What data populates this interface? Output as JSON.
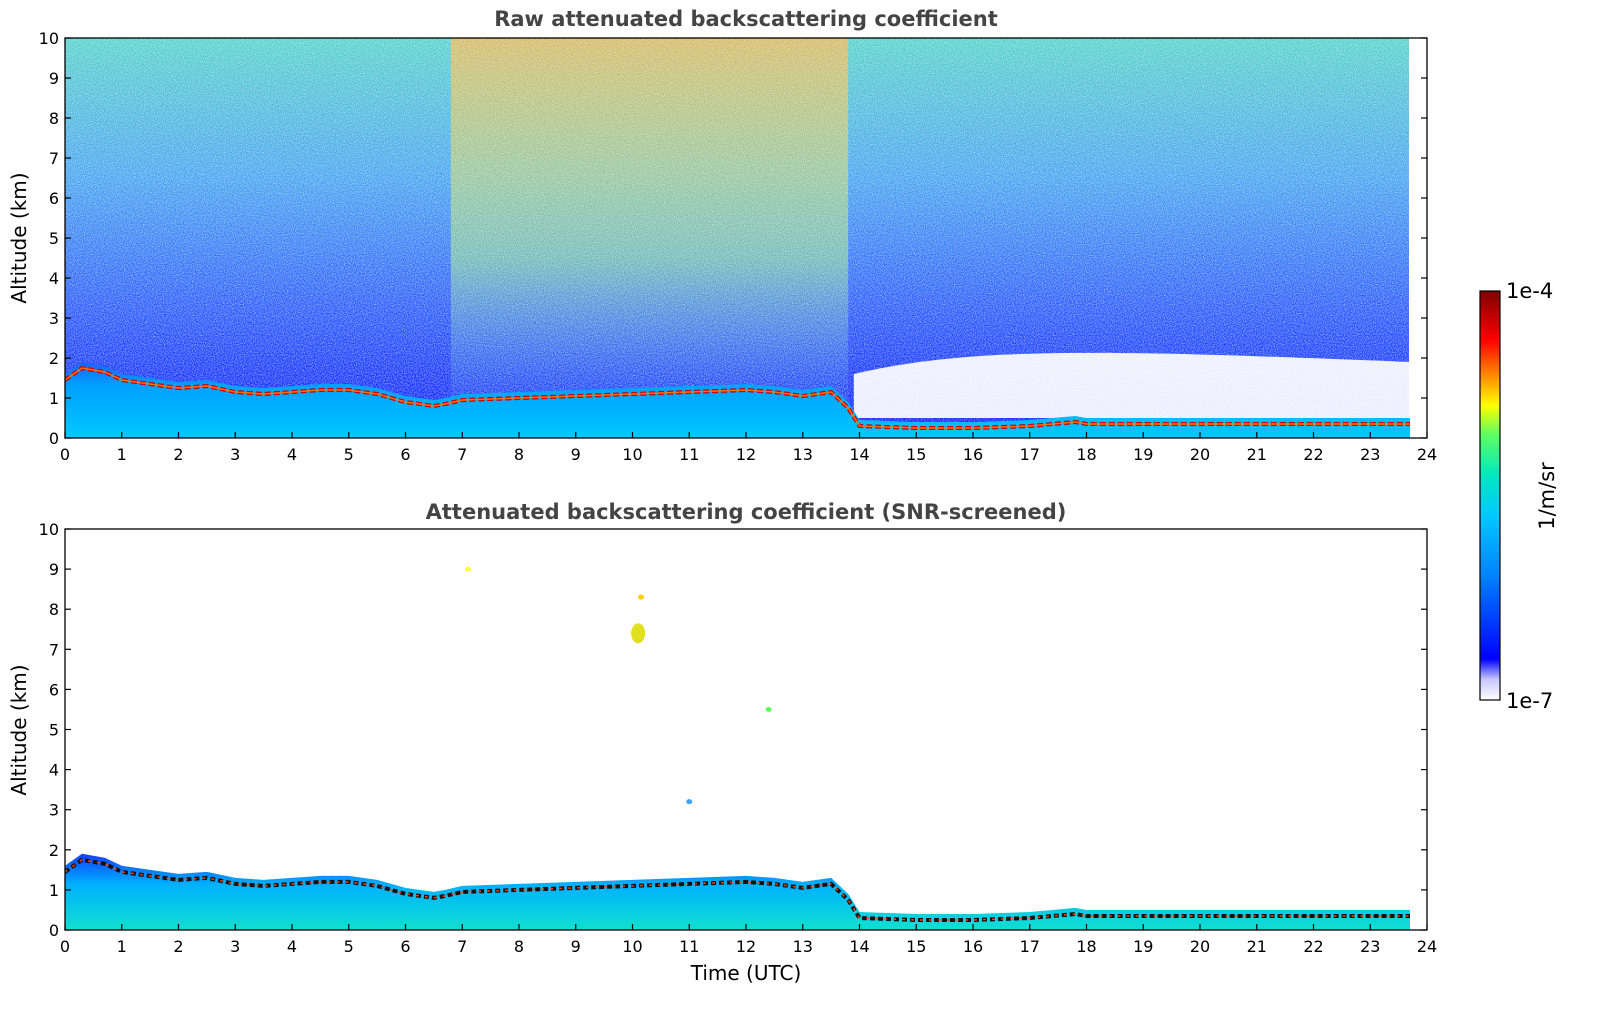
{
  "chart_data": [
    {
      "type": "heatmap",
      "title": "Raw attenuated backscattering coefficient",
      "xlabel": "",
      "ylabel": "Altitude (km)",
      "xlim": [
        0,
        24
      ],
      "ylim": [
        0,
        10
      ],
      "x_ticks": [
        "0",
        "1",
        "2",
        "3",
        "4",
        "5",
        "6",
        "7",
        "8",
        "9",
        "10",
        "11",
        "12",
        "13",
        "14",
        "15",
        "16",
        "17",
        "18",
        "19",
        "20",
        "21",
        "22",
        "23",
        "24"
      ],
      "y_ticks": [
        "0",
        "1",
        "2",
        "3",
        "4",
        "5",
        "6",
        "7",
        "8",
        "9",
        "10"
      ],
      "data_extent_hours": [
        0,
        23.7
      ],
      "layer_top_km": {
        "time": [
          0,
          0.3,
          0.7,
          1.0,
          1.5,
          2.0,
          2.5,
          3.0,
          3.5,
          4.0,
          4.5,
          5.0,
          5.5,
          6.0,
          6.5,
          6.7,
          7.0,
          8.0,
          9.0,
          10.0,
          11.0,
          12.0,
          12.5,
          13.0,
          13.5,
          13.8,
          14.0,
          15.0,
          16.0,
          17.0,
          17.8,
          18.0,
          19.0,
          20.0,
          21.0,
          22.0,
          23.0,
          23.7
        ],
        "height": [
          1.6,
          1.9,
          1.8,
          1.6,
          1.5,
          1.4,
          1.45,
          1.3,
          1.25,
          1.3,
          1.35,
          1.35,
          1.25,
          1.05,
          0.95,
          1.0,
          1.1,
          1.15,
          1.2,
          1.25,
          1.3,
          1.35,
          1.3,
          1.2,
          1.3,
          0.9,
          0.45,
          0.4,
          0.4,
          0.45,
          0.55,
          0.5,
          0.5,
          0.5,
          0.5,
          0.5,
          0.5,
          0.5
        ]
      },
      "upper_noise_enhanced_hours": [
        6.8,
        13.8
      ]
    },
    {
      "type": "heatmap",
      "title": "Attenuated backscattering coefficient (SNR-screened)",
      "xlabel": "Time (UTC)",
      "ylabel": "Altitude (km)",
      "xlim": [
        0,
        24
      ],
      "ylim": [
        0,
        10
      ],
      "x_ticks": [
        "0",
        "1",
        "2",
        "3",
        "4",
        "5",
        "6",
        "7",
        "8",
        "9",
        "10",
        "11",
        "12",
        "13",
        "14",
        "15",
        "16",
        "17",
        "18",
        "19",
        "20",
        "21",
        "22",
        "23",
        "24"
      ],
      "y_ticks": [
        "0",
        "1",
        "2",
        "3",
        "4",
        "5",
        "6",
        "7",
        "8",
        "9",
        "10"
      ],
      "data_extent_hours": [
        0,
        23.7
      ],
      "isolated_features": [
        {
          "time": 10.1,
          "altitude_km": 7.4
        },
        {
          "time": 10.15,
          "altitude_km": 8.3
        },
        {
          "time": 7.1,
          "altitude_km": 9.0
        },
        {
          "time": 12.4,
          "altitude_km": 5.5
        },
        {
          "time": 11.0,
          "altitude_km": 3.2
        }
      ]
    }
  ],
  "colorbar": {
    "label": "1/m/sr",
    "max_label": "1e-4",
    "min_label": "1e-7",
    "colormap": [
      "#ffffff",
      "#c8c8ff",
      "#0000ff",
      "#0080ff",
      "#00c8ff",
      "#00e8c0",
      "#60ff60",
      "#ffff00",
      "#ff8000",
      "#ff0000",
      "#800000"
    ]
  }
}
